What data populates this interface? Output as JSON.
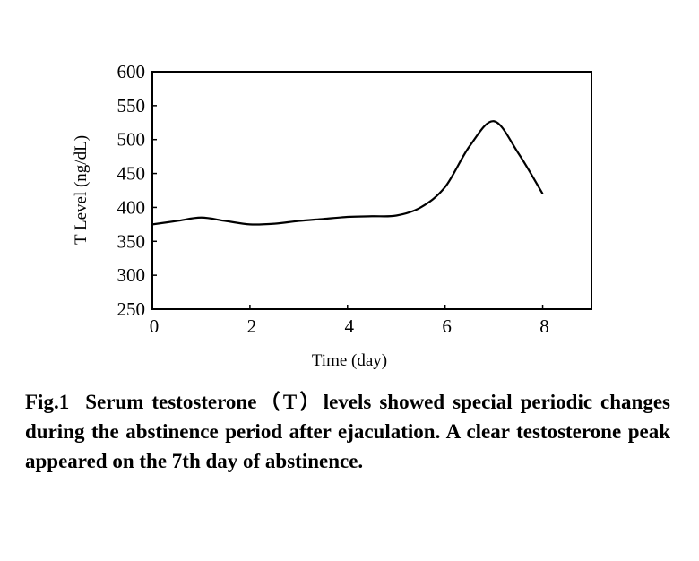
{
  "chart_data": {
    "type": "line",
    "title": "",
    "xlabel": "Time (day)",
    "ylabel": "T Level (ng/dL)",
    "xlim": [
      0,
      9
    ],
    "ylim": [
      250,
      600
    ],
    "xticks": [
      0,
      2,
      4,
      6,
      8
    ],
    "yticks": [
      250,
      300,
      350,
      400,
      450,
      500,
      550,
      600
    ],
    "grid": false,
    "series": [
      {
        "name": "Serum testosterone",
        "x": [
          0,
          0.5,
          1,
          1.5,
          2,
          2.5,
          3,
          3.5,
          4,
          4.5,
          5,
          5.5,
          6,
          6.5,
          7,
          7.5,
          8
        ],
        "y": [
          375,
          380,
          385,
          380,
          375,
          376,
          380,
          383,
          386,
          387,
          388,
          400,
          430,
          490,
          527,
          480,
          420
        ]
      }
    ]
  },
  "caption": {
    "label": "Fig.1",
    "text": "Serum testosterone（T）levels showed special periodic changes during the abstinence period after ejaculation. A clear testosterone peak appeared on the 7th day of abstinence."
  }
}
